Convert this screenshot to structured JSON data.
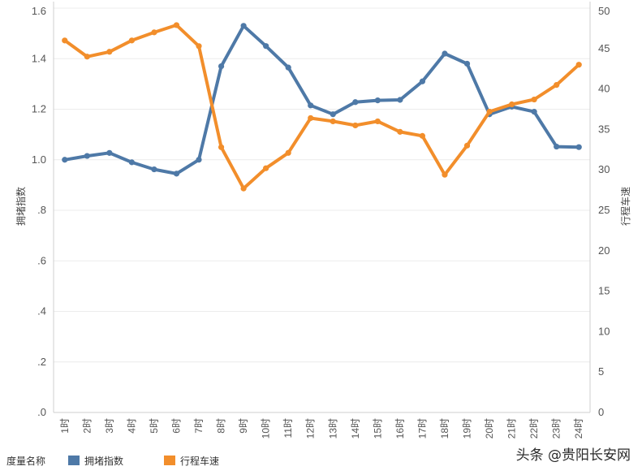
{
  "chart_data": {
    "type": "line",
    "categories": [
      "1时",
      "2时",
      "3时",
      "4时",
      "5时",
      "6时",
      "7时",
      "8时",
      "9时",
      "10时",
      "11时",
      "12时",
      "13时",
      "14时",
      "15时",
      "16时",
      "17时",
      "18时",
      "19时",
      "20时",
      "21时",
      "22时",
      "23时",
      "24时"
    ],
    "series": [
      {
        "name": "拥堵指数",
        "axis": "left",
        "color": "#4e79a7",
        "values": [
          1.0,
          1.015,
          1.027,
          0.99,
          0.962,
          0.945,
          1.0,
          1.37,
          1.53,
          1.45,
          1.365,
          1.215,
          1.18,
          1.228,
          1.235,
          1.237,
          1.31,
          1.42,
          1.38,
          1.18,
          1.21,
          1.19,
          1.052,
          1.05
        ]
      },
      {
        "name": "行程车速",
        "axis": "right",
        "color": "#f28e2b",
        "values": [
          46.0,
          44.0,
          44.6,
          46.0,
          47.0,
          47.9,
          45.3,
          32.8,
          27.7,
          30.2,
          32.1,
          36.4,
          36.0,
          35.5,
          36.0,
          34.7,
          34.2,
          29.4,
          33.0,
          37.2,
          38.1,
          38.7,
          40.5,
          43.0
        ]
      }
    ],
    "y_left": {
      "label": "拥堵指数",
      "ylim": [
        0,
        1.6
      ],
      "ticks": [
        ".0",
        ".2",
        ".4",
        ".6",
        ".8",
        "1.0",
        "1.2",
        "1.4",
        "1.6"
      ]
    },
    "y_right": {
      "label": "行程车速",
      "ylim": [
        0,
        50
      ],
      "ticks": [
        "0",
        "5",
        "10",
        "15",
        "20",
        "25",
        "30",
        "35",
        "40",
        "45",
        "50"
      ]
    },
    "grid": true,
    "legend": {
      "title": "度量名称",
      "position": "bottom-left",
      "items": [
        {
          "label": "拥堵指数",
          "color": "#4e79a7"
        },
        {
          "label": "行程车速",
          "color": "#f28e2b"
        }
      ]
    }
  },
  "watermark": "头条 @贵阳长安网"
}
